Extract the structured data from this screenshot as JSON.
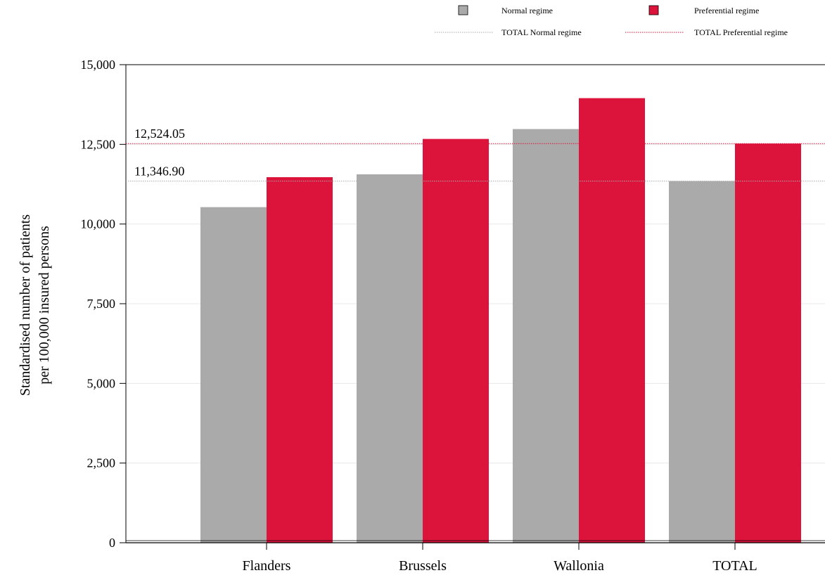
{
  "colors": {
    "normal": "#aaaaaa",
    "preferential": "#dc143c",
    "grid": "#e8e8e8",
    "axis": "#000000"
  },
  "chart_data": {
    "type": "bar",
    "categories": [
      "Flanders",
      "Brussels",
      "Wallonia",
      "TOTAL"
    ],
    "series": [
      {
        "name": "Normal regime",
        "values": [
          10530,
          11560,
          12980,
          11346.9
        ]
      },
      {
        "name": "Preferential regime",
        "values": [
          11470,
          12670,
          13950,
          12524.05
        ]
      }
    ],
    "reference_lines": [
      {
        "name": "TOTAL Normal regime",
        "value": 11346.9,
        "label": "11,346.90"
      },
      {
        "name": "TOTAL Preferential regime",
        "value": 12524.05,
        "label": "12,524.05"
      }
    ],
    "title": "",
    "xlabel": "",
    "ylabel_lines": [
      "Standardised number of patients",
      "per 100,000 insured persons"
    ],
    "ylim": [
      0,
      15000
    ],
    "yticks": [
      0,
      2500,
      5000,
      7500,
      10000,
      12500,
      15000
    ],
    "ytick_labels": [
      "0",
      "2,500",
      "5,000",
      "7,500",
      "10,000",
      "12,500",
      "15,000"
    ],
    "grid": true,
    "legend_position": "top-right"
  }
}
